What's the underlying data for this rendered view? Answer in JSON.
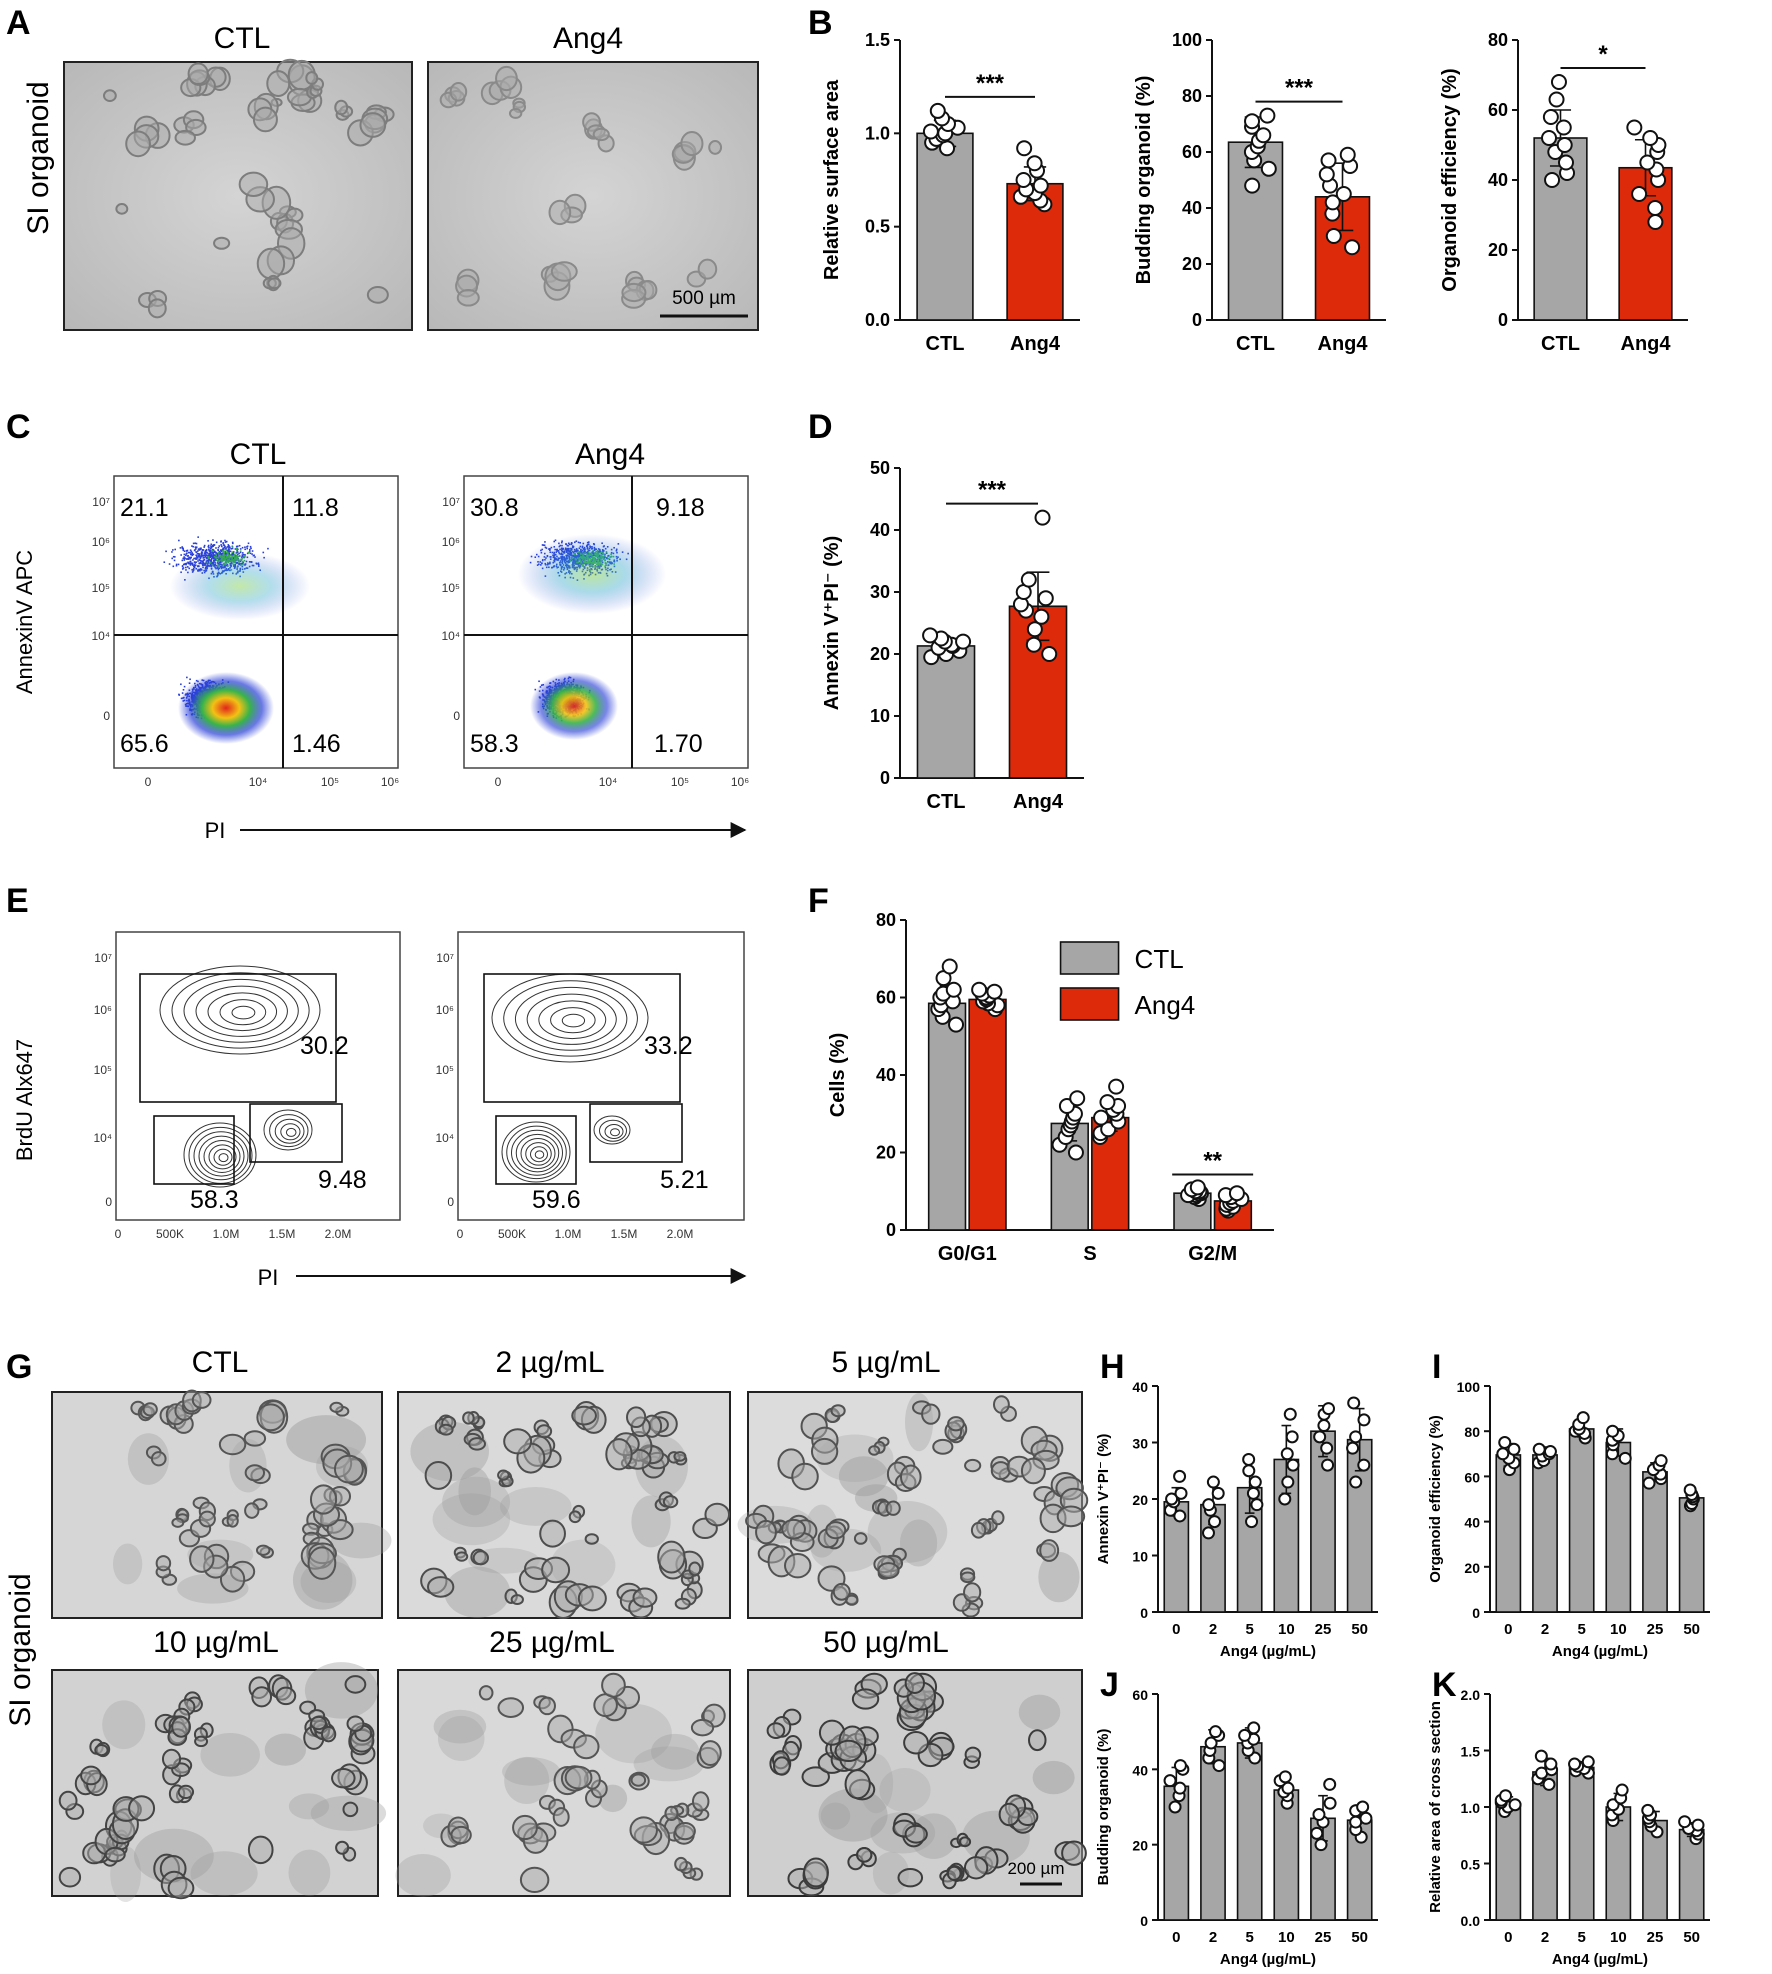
{
  "colors": {
    "ctl": "#a6a6a6",
    "ang4": "#dd2a0b",
    "frame": "#222222",
    "photo_bg": "#c9c9c9",
    "photo_bg_g": "#d8d8d8"
  },
  "panel_labels": [
    "A",
    "B",
    "C",
    "D",
    "E",
    "F",
    "G",
    "H",
    "I",
    "J",
    "K"
  ],
  "panel_a": {
    "titles": [
      "CTL",
      "Ang4"
    ],
    "side_label": "SI organoid",
    "scale_bar": "500 µm"
  },
  "panel_c": {
    "titles": [
      "CTL",
      "Ang4"
    ],
    "ylabel": "AnnexinV APC",
    "xlabel": "PI",
    "y_ticks": [
      "10⁷",
      "10⁶",
      "10⁵",
      "10⁴",
      "0"
    ],
    "x_ticks": [
      "0",
      "10⁴",
      "10⁵",
      "10⁶"
    ],
    "plots": [
      {
        "q_ul": "21.1",
        "q_ur": "11.8",
        "q_ll": "65.6",
        "q_lr": "1.46"
      },
      {
        "q_ul": "30.8",
        "q_ur": "9.18",
        "q_ll": "58.3",
        "q_lr": "1.70"
      }
    ]
  },
  "panel_e": {
    "ylabel": "BrdU Alx647",
    "xlabel": "PI",
    "y_ticks": [
      "10⁷",
      "10⁶",
      "10⁵",
      "10⁴",
      "0"
    ],
    "x_ticks": [
      "0",
      "500K",
      "1.0M",
      "1.5M",
      "2.0M"
    ],
    "plots": [
      {
        "s_phase": "30.2",
        "g0g1": "58.3",
        "g2m": "9.48"
      },
      {
        "s_phase": "33.2",
        "g0g1": "59.6",
        "g2m": "5.21"
      }
    ]
  },
  "panel_g": {
    "side_label": "SI organoid",
    "titles": [
      "CTL",
      "2 µg/mL",
      "5 µg/mL",
      "10 µg/mL",
      "25 µg/mL",
      "50 µg/mL"
    ],
    "scale_bar": "200 µm"
  },
  "chart_data": [
    {
      "panel": "B",
      "type": "bar",
      "categories": [
        "CTL",
        "Ang4"
      ],
      "values": [
        1.0,
        0.73
      ],
      "errors": [
        0.07,
        0.09
      ],
      "points": [
        [
          0.92,
          0.95,
          0.97,
          0.99,
          1.0,
          1.01,
          1.03,
          1.05,
          1.08,
          1.12
        ],
        [
          0.62,
          0.64,
          0.66,
          0.68,
          0.7,
          0.72,
          0.75,
          0.8,
          0.84,
          0.92
        ]
      ],
      "ylabel": "Relative surface area",
      "ylim": [
        0,
        1.5
      ],
      "yticks": [
        "0.0",
        "0.5",
        "1.0",
        "1.5"
      ],
      "significance": "***"
    },
    {
      "panel": "B",
      "type": "bar",
      "categories": [
        "CTL",
        "Ang4"
      ],
      "values": [
        63.5,
        44
      ],
      "errors": [
        9,
        12
      ],
      "points": [
        [
          48,
          54,
          57,
          60,
          62,
          64,
          66,
          69,
          71,
          73
        ],
        [
          26,
          30,
          38,
          42,
          45,
          48,
          52,
          55,
          57,
          59
        ]
      ],
      "ylabel": "Budding organoid (%)",
      "ylim": [
        0,
        100
      ],
      "yticks": [
        "0",
        "20",
        "40",
        "60",
        "80",
        "100"
      ],
      "significance": "***"
    },
    {
      "panel": "B",
      "type": "bar",
      "categories": [
        "CTL",
        "Ang4"
      ],
      "values": [
        52,
        43.5
      ],
      "errors": [
        8,
        8
      ],
      "points": [
        [
          40,
          42,
          45,
          48,
          50,
          52,
          55,
          58,
          63,
          68
        ],
        [
          28,
          32,
          36,
          40,
          43,
          45,
          48,
          50,
          52,
          55
        ]
      ],
      "ylabel": "Organoid efficiency (%)",
      "ylim": [
        0,
        80
      ],
      "yticks": [
        "0",
        "20",
        "40",
        "60",
        "80"
      ],
      "significance": "*"
    },
    {
      "panel": "D",
      "type": "bar",
      "categories": [
        "CTL",
        "Ang4"
      ],
      "values": [
        21.3,
        27.7
      ],
      "errors": [
        1.2,
        5.5
      ],
      "points": [
        [
          19.5,
          20,
          20.5,
          21,
          21.3,
          21.5,
          22,
          22,
          22.5,
          23
        ],
        [
          20,
          21.5,
          24,
          26,
          27,
          28,
          29,
          30,
          32,
          42
        ]
      ],
      "ylabel": "Annexin V⁺PI⁻ (%)",
      "ylim": [
        0,
        50
      ],
      "yticks": [
        "0",
        "10",
        "20",
        "30",
        "40",
        "50"
      ],
      "significance": "***"
    },
    {
      "panel": "F",
      "type": "bar",
      "categories": [
        "G0/G1",
        "S",
        "G2/M"
      ],
      "series": [
        {
          "name": "CTL",
          "values": [
            58.5,
            27.5,
            9.5
          ],
          "errors": [
            4.5,
            4.5,
            1.2
          ],
          "points": [
            [
              53,
              55,
              57,
              58,
              59,
              60,
              61,
              62,
              65,
              68
            ],
            [
              20,
              22,
              24,
              26,
              27,
              28,
              29,
              30,
              32,
              34
            ],
            [
              8,
              8.5,
              9,
              9,
              9.5,
              9.5,
              10,
              10,
              10.5,
              11
            ]
          ]
        },
        {
          "name": "Ang4",
          "values": [
            59.5,
            29,
            7.5
          ],
          "errors": [
            2,
            3.5,
            1.5
          ],
          "points": [
            [
              57,
              58,
              58.5,
              59,
              59.5,
              60,
              60.5,
              61,
              61.5,
              62
            ],
            [
              24,
              25,
              26,
              28,
              29,
              30,
              31,
              32,
              33,
              37
            ],
            [
              5,
              5.5,
              6,
              6.5,
              7,
              7.5,
              8,
              8.5,
              9,
              9.5
            ]
          ]
        }
      ],
      "ylabel": "Cells (%)",
      "ylim": [
        0,
        80
      ],
      "yticks": [
        "0",
        "20",
        "40",
        "60",
        "80"
      ],
      "significance": "**",
      "legend": "top-right"
    },
    {
      "panel": "H",
      "type": "bar",
      "categories": [
        "0",
        "2",
        "5",
        "10",
        "25",
        "50"
      ],
      "values": [
        19.5,
        19,
        22,
        27,
        32,
        30.5
      ],
      "errors": [
        2.5,
        3.5,
        4.5,
        6,
        4.5,
        5.5
      ],
      "points": [
        [
          17,
          18,
          19.5,
          20,
          21,
          24
        ],
        [
          14,
          16,
          18,
          19,
          21,
          23
        ],
        [
          16,
          19,
          21,
          23,
          25,
          27
        ],
        [
          20,
          23,
          26,
          28,
          31,
          35
        ],
        [
          26,
          29,
          31,
          33,
          35,
          36
        ],
        [
          23,
          26,
          29,
          31,
          34,
          37
        ]
      ],
      "ylabel": "Annexin V⁺PI⁻ (%)",
      "xlabel": "Ang4 (µg/mL)",
      "ylim": [
        0,
        40
      ],
      "yticks": [
        "0",
        "10",
        "20",
        "30",
        "40"
      ]
    },
    {
      "panel": "I",
      "type": "bar",
      "categories": [
        "0",
        "2",
        "5",
        "10",
        "25",
        "50"
      ],
      "values": [
        69.5,
        69.5,
        81,
        75,
        62,
        50.5
      ],
      "errors": [
        5,
        3.5,
        3.5,
        6,
        4,
        3
      ],
      "points": [
        [
          63,
          66,
          68,
          70,
          72,
          75
        ],
        [
          66,
          67,
          69,
          70,
          71,
          72
        ],
        [
          77,
          79,
          80,
          81,
          83,
          86
        ],
        [
          68,
          70,
          74,
          76,
          78,
          80
        ],
        [
          57,
          59,
          61,
          63,
          65,
          67
        ],
        [
          47,
          48,
          50,
          51,
          52,
          54
        ]
      ],
      "ylabel": "Organoid efficiency (%)",
      "xlabel": "Ang4 (µg/mL)",
      "ylim": [
        0,
        100
      ],
      "yticks": [
        "0",
        "20",
        "40",
        "60",
        "80",
        "100"
      ]
    },
    {
      "panel": "J",
      "type": "bar",
      "categories": [
        "0",
        "2",
        "5",
        "10",
        "25",
        "50"
      ],
      "values": [
        35.5,
        46,
        47,
        34.5,
        27,
        26.5
      ],
      "errors": [
        5,
        4.5,
        4,
        4,
        6,
        4
      ],
      "points": [
        [
          30,
          33,
          35,
          37,
          40,
          41
        ],
        [
          41,
          43,
          45,
          47,
          49,
          50
        ],
        [
          43,
          45,
          47,
          48,
          49,
          51
        ],
        [
          31,
          33,
          34,
          35,
          37,
          38
        ],
        [
          20,
          23,
          26,
          28,
          31,
          36
        ],
        [
          22,
          24,
          26,
          27,
          29,
          30
        ]
      ],
      "ylabel": "Budding organoid (%)",
      "xlabel": "Ang4 (µg/mL)",
      "ylim": [
        0,
        60
      ],
      "yticks": [
        "0",
        "20",
        "40",
        "60"
      ]
    },
    {
      "panel": "K",
      "type": "bar",
      "categories": [
        "0",
        "2",
        "5",
        "10",
        "25",
        "50"
      ],
      "values": [
        1.03,
        1.31,
        1.35,
        1.0,
        0.88,
        0.8
      ],
      "errors": [
        0.06,
        0.12,
        0.05,
        0.12,
        0.08,
        0.06
      ],
      "points": [
        [
          0.96,
          1.0,
          1.02,
          1.04,
          1.06,
          1.1
        ],
        [
          1.2,
          1.25,
          1.3,
          1.33,
          1.38,
          1.45
        ],
        [
          1.3,
          1.32,
          1.34,
          1.36,
          1.38,
          1.4
        ],
        [
          0.88,
          0.93,
          0.98,
          1.02,
          1.08,
          1.15
        ],
        [
          0.78,
          0.83,
          0.87,
          0.9,
          0.93,
          0.97
        ],
        [
          0.72,
          0.76,
          0.79,
          0.81,
          0.84,
          0.87
        ]
      ],
      "ylabel": "Relative area of cross section",
      "xlabel": "Ang4 (µg/mL)",
      "ylim": [
        0,
        2.0
      ],
      "yticks": [
        "0.0",
        "0.5",
        "1.0",
        "1.5",
        "2.0"
      ]
    }
  ]
}
